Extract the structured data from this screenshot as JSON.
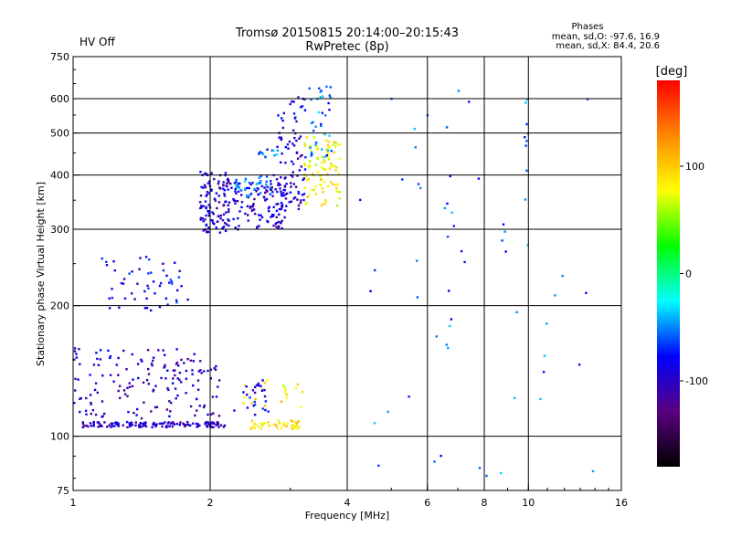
{
  "header": {
    "title_line1": "Tromsø 20150815 20:14:00–20:15:43",
    "title_line2": "RwPretec (8p)",
    "status": "HV Off",
    "status_color": "#e00000"
  },
  "stats": {
    "heading": "Phases",
    "o_line": "mean, sd,O:  -97.6, 16.9",
    "x_line": "mean, sd,X:  84.4, 20.6"
  },
  "chart_data": {
    "type": "scatter",
    "xlabel": "Frequency [MHz]",
    "ylabel": "Stationary phase Virtual Height [km]",
    "x_scale": "log2",
    "y_scale": "log",
    "xlim": [
      1,
      16
    ],
    "ylim": [
      75,
      750
    ],
    "x_ticks": [
      1,
      2,
      4,
      6,
      8,
      10,
      16
    ],
    "x_tick_labels": [
      "1",
      "2",
      "4",
      "6",
      "8",
      "10",
      "16"
    ],
    "x_grid": [
      2,
      4,
      6,
      8,
      10
    ],
    "y_ticks": [
      75,
      100,
      200,
      300,
      400,
      500,
      600,
      750
    ],
    "y_tick_labels": [
      "75",
      "100",
      "200",
      "300",
      "400",
      "500",
      "600",
      "750"
    ],
    "y_grid": [
      100,
      200,
      300,
      400,
      500,
      600
    ],
    "grid": true,
    "colorbar": {
      "label": "[deg]",
      "range": [
        -180,
        180
      ],
      "ticks": [
        100,
        0,
        -100
      ],
      "tick_labels": [
        "100",
        "0",
        "-100"
      ],
      "colors": [
        "#ff0000",
        "#ff8800",
        "#ffff00",
        "#00ff00",
        "#00ffff",
        "#0000ff",
        "#5a0080",
        "#000000"
      ]
    },
    "series": [
      {
        "role": "E-layer O-mode trace",
        "phase": -100,
        "clusters": [
          {
            "x": [
              1.05,
              2.15
            ],
            "y": [
              105,
              108
            ],
            "n": 130
          },
          {
            "x": [
              1.0,
              2.1
            ],
            "y": [
              110,
              160
            ],
            "n": 160
          }
        ],
        "points": [
          [
            1.05,
            105
          ],
          [
            1.2,
            106
          ],
          [
            1.4,
            106
          ],
          [
            1.6,
            105
          ],
          [
            1.8,
            106
          ],
          [
            2.0,
            106
          ],
          [
            2.15,
            106
          ]
        ]
      },
      {
        "role": "E-layer X-mode trace",
        "phase": 90,
        "clusters": [
          {
            "x": [
              2.45,
              3.15
            ],
            "y": [
              104,
              109
            ],
            "n": 40
          },
          {
            "x": [
              2.35,
              3.2
            ],
            "y": [
              115,
              135
            ],
            "n": 20
          }
        ],
        "points": [
          [
            2.5,
            107
          ],
          [
            2.7,
            106
          ],
          [
            2.9,
            106
          ],
          [
            3.1,
            106
          ]
        ]
      },
      {
        "role": "Sporadic O-mode echoes",
        "phase": -85,
        "clusters": [
          {
            "x": [
              1.15,
              1.8
            ],
            "y": [
              195,
              260
            ],
            "n": 50
          },
          {
            "x": [
              2.25,
              2.7
            ],
            "y": [
              112,
              135
            ],
            "n": 25
          }
        ],
        "points": [
          [
            1.2,
            208
          ],
          [
            1.3,
            208
          ],
          [
            1.45,
            208
          ],
          [
            1.6,
            208
          ]
        ]
      },
      {
        "role": "F-layer O-mode trace",
        "phase": -95,
        "clusters": [
          {
            "x": [
              1.9,
              2.2
            ],
            "y": [
              295,
              410
            ],
            "n": 110
          },
          {
            "x": [
              2.2,
              2.95
            ],
            "y": [
              300,
              390
            ],
            "n": 110
          },
          {
            "x": [
              2.8,
              3.25
            ],
            "y": [
              330,
              610
            ],
            "n": 90
          }
        ],
        "points": [
          [
            1.95,
            300
          ],
          [
            2.1,
            295
          ],
          [
            2.3,
            300
          ],
          [
            2.6,
            320
          ],
          [
            2.9,
            370
          ],
          [
            3.1,
            450
          ],
          [
            3.2,
            600
          ]
        ]
      },
      {
        "role": "F-layer X-mode trace",
        "phase": 80,
        "clusters": [
          {
            "x": [
              3.2,
              3.85
            ],
            "y": [
              340,
              490
            ],
            "n": 90
          }
        ],
        "points": [
          [
            3.3,
            360
          ],
          [
            3.5,
            380
          ],
          [
            3.7,
            420
          ],
          [
            3.85,
            470
          ]
        ]
      },
      {
        "role": "F-layer oblique echoes",
        "phase": -55,
        "clusters": [
          {
            "x": [
              2.25,
              2.8
            ],
            "y": [
              355,
              400
            ],
            "n": 40
          },
          {
            "x": [
              2.5,
              2.85
            ],
            "y": [
              440,
              460
            ],
            "n": 12
          },
          {
            "x": [
              3.3,
              3.7
            ],
            "y": [
              440,
              650
            ],
            "n": 35
          }
        ],
        "points": [
          [
            2.6,
            450
          ],
          [
            3.5,
            520
          ],
          [
            3.6,
            640
          ]
        ]
      },
      {
        "role": "Scattered noise echoes",
        "phase": -60,
        "clusters": [
          {
            "x": [
              4.0,
              14.0
            ],
            "y": [
              80,
              640
            ],
            "n": 45
          },
          {
            "x": [
              6.6,
              6.8
            ],
            "y": [
              150,
              560
            ],
            "n": 8
          },
          {
            "x": [
              9.8,
              10.0
            ],
            "y": [
              230,
              620
            ],
            "n": 8
          }
        ],
        "points": [
          [
            5.0,
            600
          ],
          [
            6.0,
            550
          ],
          [
            9.9,
            480
          ],
          [
            9.9,
            410
          ]
        ]
      }
    ]
  }
}
